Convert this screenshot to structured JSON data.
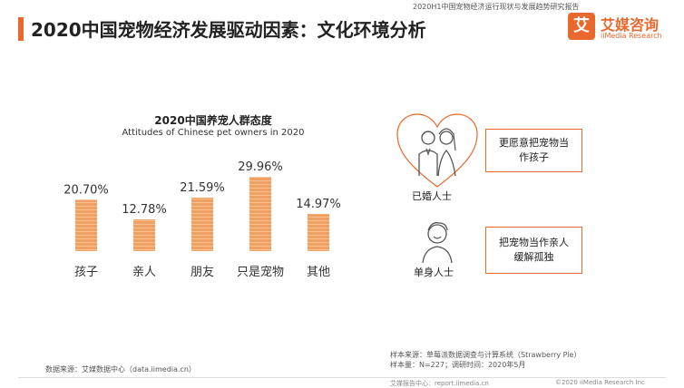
{
  "header": {
    "report_name": "2020H1中国宠物经济运行现状与发展趋势研究报告",
    "title": "2020中国宠物经济发展驱动因素：文化环境分析",
    "logo_mark": "艾",
    "logo_cn": "艾媒咨询",
    "logo_en": "iiMedia Research",
    "accent": "#e8682e"
  },
  "chart_data": {
    "type": "bar",
    "title": "2020中国养宠人群态度",
    "subtitle": "Attitudes of Chinese pet owners in 2020",
    "categories": [
      "孩子",
      "亲人",
      "朋友",
      "只是宠物",
      "其他"
    ],
    "values": [
      20.7,
      12.78,
      21.59,
      29.96,
      14.97
    ],
    "value_labels": [
      "20.70%",
      "12.78%",
      "21.59%",
      "29.96%",
      "14.97%"
    ],
    "ylim": [
      0,
      30
    ],
    "grid": false,
    "bar_color": "#f0a060",
    "bar_stripe_color": "#f6c093"
  },
  "right_panel": {
    "married_label": "已婚人士",
    "married_text": "更愿意把宠物当作孩子",
    "single_label": "单身人士",
    "single_text": "把宠物当作亲人缓解孤独",
    "married_icon": "married-couple-icon",
    "single_icon": "single-person-icon"
  },
  "footer": {
    "data_source": "数据来源：艾媒数据中心（data.iimedia.cn）",
    "sample_source": "样本来源：草莓派数据调查与计算系统（Strawberry Pie）",
    "sample_size": "样本量：N=227；调研时间：2020年5月",
    "report_center": "艾媒报告中心：report.iimedia.cn",
    "copyright": "©2020  iiMedia Research  Inc"
  }
}
